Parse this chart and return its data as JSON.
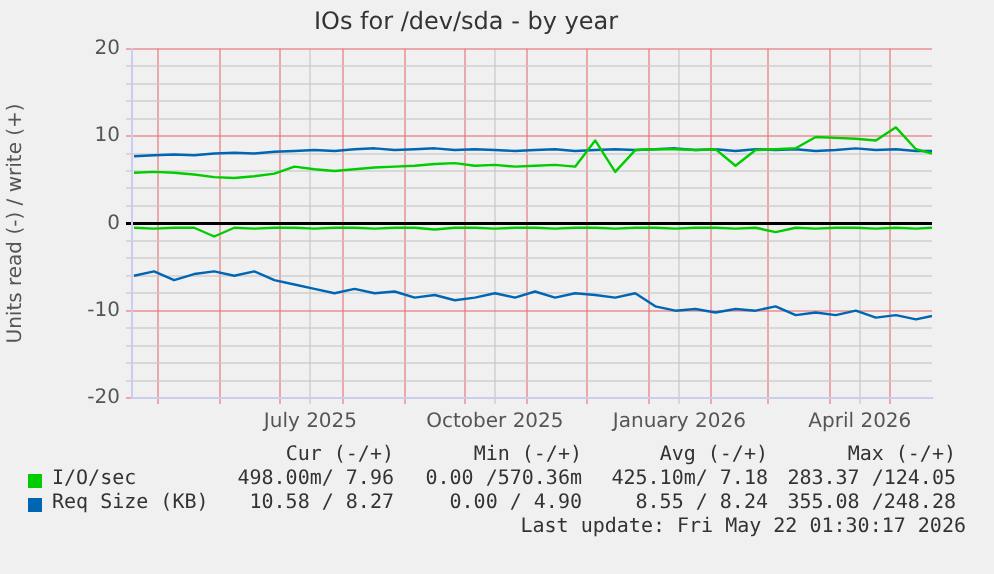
{
  "chart_data": {
    "type": "line",
    "title": "IOs for /dev/sda - by year",
    "ylabel": "Units read (-) / write (+)",
    "x": [
      "2025-04-19",
      "2025-04-29",
      "2025-05-09",
      "2025-05-19",
      "2025-05-29",
      "2025-06-08",
      "2025-06-18",
      "2025-06-28",
      "2025-07-08",
      "2025-07-18",
      "2025-07-28",
      "2025-08-07",
      "2025-08-17",
      "2025-08-27",
      "2025-09-06",
      "2025-09-16",
      "2025-09-26",
      "2025-10-06",
      "2025-10-16",
      "2025-10-26",
      "2025-11-05",
      "2025-11-15",
      "2025-11-25",
      "2025-12-05",
      "2025-12-15",
      "2025-12-25",
      "2026-01-04",
      "2026-01-14",
      "2026-01-24",
      "2026-02-03",
      "2026-02-13",
      "2026-02-23",
      "2026-03-05",
      "2026-03-15",
      "2026-03-25",
      "2026-04-04",
      "2026-04-14",
      "2026-04-24",
      "2026-05-04",
      "2026-05-14",
      "2026-05-22"
    ],
    "series": [
      {
        "name": "I/O/sec",
        "color": "#00cc00",
        "values": [
          5.8,
          5.9,
          5.8,
          5.6,
          5.3,
          5.2,
          5.4,
          5.7,
          6.5,
          6.2,
          6.0,
          6.2,
          6.4,
          6.5,
          6.6,
          6.8,
          6.9,
          6.6,
          6.7,
          6.5,
          6.6,
          6.7,
          6.5,
          9.5,
          5.9,
          8.4,
          8.5,
          8.5,
          8.4,
          8.5,
          6.6,
          8.4,
          8.5,
          8.6,
          9.9,
          9.8,
          9.7,
          9.5,
          11.0,
          8.5,
          8.0
        ]
      },
      {
        "color": "#00cc00",
        "values": [
          -0.5,
          -0.6,
          -0.5,
          -0.5,
          -1.5,
          -0.5,
          -0.6,
          -0.5,
          -0.5,
          -0.6,
          -0.5,
          -0.5,
          -0.6,
          -0.5,
          -0.5,
          -0.7,
          -0.5,
          -0.5,
          -0.6,
          -0.5,
          -0.5,
          -0.6,
          -0.5,
          -0.5,
          -0.6,
          -0.5,
          -0.5,
          -0.6,
          -0.5,
          -0.5,
          -0.6,
          -0.5,
          -1.0,
          -0.5,
          -0.6,
          -0.5,
          -0.5,
          -0.6,
          -0.5,
          -0.6,
          -0.5
        ]
      },
      {
        "name": "Req Size (KB)",
        "color": "#0066b3",
        "values": [
          7.7,
          7.8,
          7.9,
          7.8,
          8.0,
          8.1,
          8.0,
          8.2,
          8.3,
          8.4,
          8.3,
          8.5,
          8.6,
          8.4,
          8.5,
          8.6,
          8.4,
          8.5,
          8.4,
          8.3,
          8.4,
          8.5,
          8.3,
          8.4,
          8.5,
          8.4,
          8.5,
          8.6,
          8.4,
          8.5,
          8.3,
          8.5,
          8.4,
          8.5,
          8.3,
          8.4,
          8.6,
          8.4,
          8.5,
          8.3,
          8.3
        ]
      },
      {
        "color": "#0066b3",
        "values": [
          -6.0,
          -5.5,
          -6.5,
          -5.8,
          -5.5,
          -6.0,
          -5.5,
          -6.5,
          -7.0,
          -7.5,
          -8.0,
          -7.5,
          -8.0,
          -7.8,
          -8.5,
          -8.2,
          -8.8,
          -8.5,
          -8.0,
          -8.5,
          -7.8,
          -8.5,
          -8.0,
          -8.2,
          -8.5,
          -8.0,
          -9.5,
          -10.0,
          -9.8,
          -10.2,
          -9.8,
          -10.0,
          -9.5,
          -10.5,
          -10.2,
          -10.5,
          -10.0,
          -10.8,
          -10.5,
          -11.0,
          -10.6
        ]
      }
    ],
    "xlim": [
      "2025-04-18",
      "2026-05-22"
    ],
    "xticks": [
      {
        "value": "2025-05-01",
        "label": null
      },
      {
        "value": "2025-06-01",
        "label": null
      },
      {
        "value": "2025-07-01",
        "label": null
      },
      {
        "value": "2025-07-16",
        "label": "July 2025"
      },
      {
        "value": "2025-08-01",
        "label": null
      },
      {
        "value": "2025-09-01",
        "label": null
      },
      {
        "value": "2025-10-01",
        "label": null
      },
      {
        "value": "2025-10-16",
        "label": "October 2025"
      },
      {
        "value": "2025-11-01",
        "label": null
      },
      {
        "value": "2025-12-01",
        "label": null
      },
      {
        "value": "2026-01-01",
        "label": null
      },
      {
        "value": "2026-01-16",
        "label": "January 2026"
      },
      {
        "value": "2026-02-01",
        "label": null
      },
      {
        "value": "2026-03-01",
        "label": null
      },
      {
        "value": "2026-04-01",
        "label": null
      },
      {
        "value": "2026-04-16",
        "label": "April 2026"
      },
      {
        "value": "2026-05-01",
        "label": null
      }
    ],
    "ylim": [
      -20,
      20
    ],
    "yticks": [
      -20,
      {
        "value": -18,
        "label": null
      },
      {
        "value": -16,
        "label": null
      },
      {
        "value": -14,
        "label": null
      },
      {
        "value": -12,
        "label": null
      },
      -10,
      {
        "value": -8,
        "label": null
      },
      {
        "value": -6,
        "label": null
      },
      {
        "value": -4,
        "label": null
      },
      {
        "value": -2,
        "label": null
      },
      0,
      {
        "value": 2,
        "label": null
      },
      {
        "value": 4,
        "label": null
      },
      {
        "value": 6,
        "label": null
      },
      {
        "value": 8,
        "label": null
      },
      10,
      {
        "value": 12,
        "label": null
      },
      {
        "value": 14,
        "label": null
      },
      {
        "value": 16,
        "label": null
      },
      {
        "value": 18,
        "label": null
      },
      20
    ],
    "grid": true,
    "legend": "bottom",
    "annotations": [
      "Cur (-/+)",
      "Min (-/+)",
      "Avg (-/+)",
      "Max (-/+)",
      "498.00m/ 7.96",
      "0.00 /570.36m",
      "425.10m/ 7.18",
      "283.37 /124.05",
      "10.58 / 8.27",
      "0.00 / 4.90",
      "8.55 / 8.24",
      "355.08 /248.28",
      "Last update: Fri May 22 01:30:17 2026"
    ]
  }
}
